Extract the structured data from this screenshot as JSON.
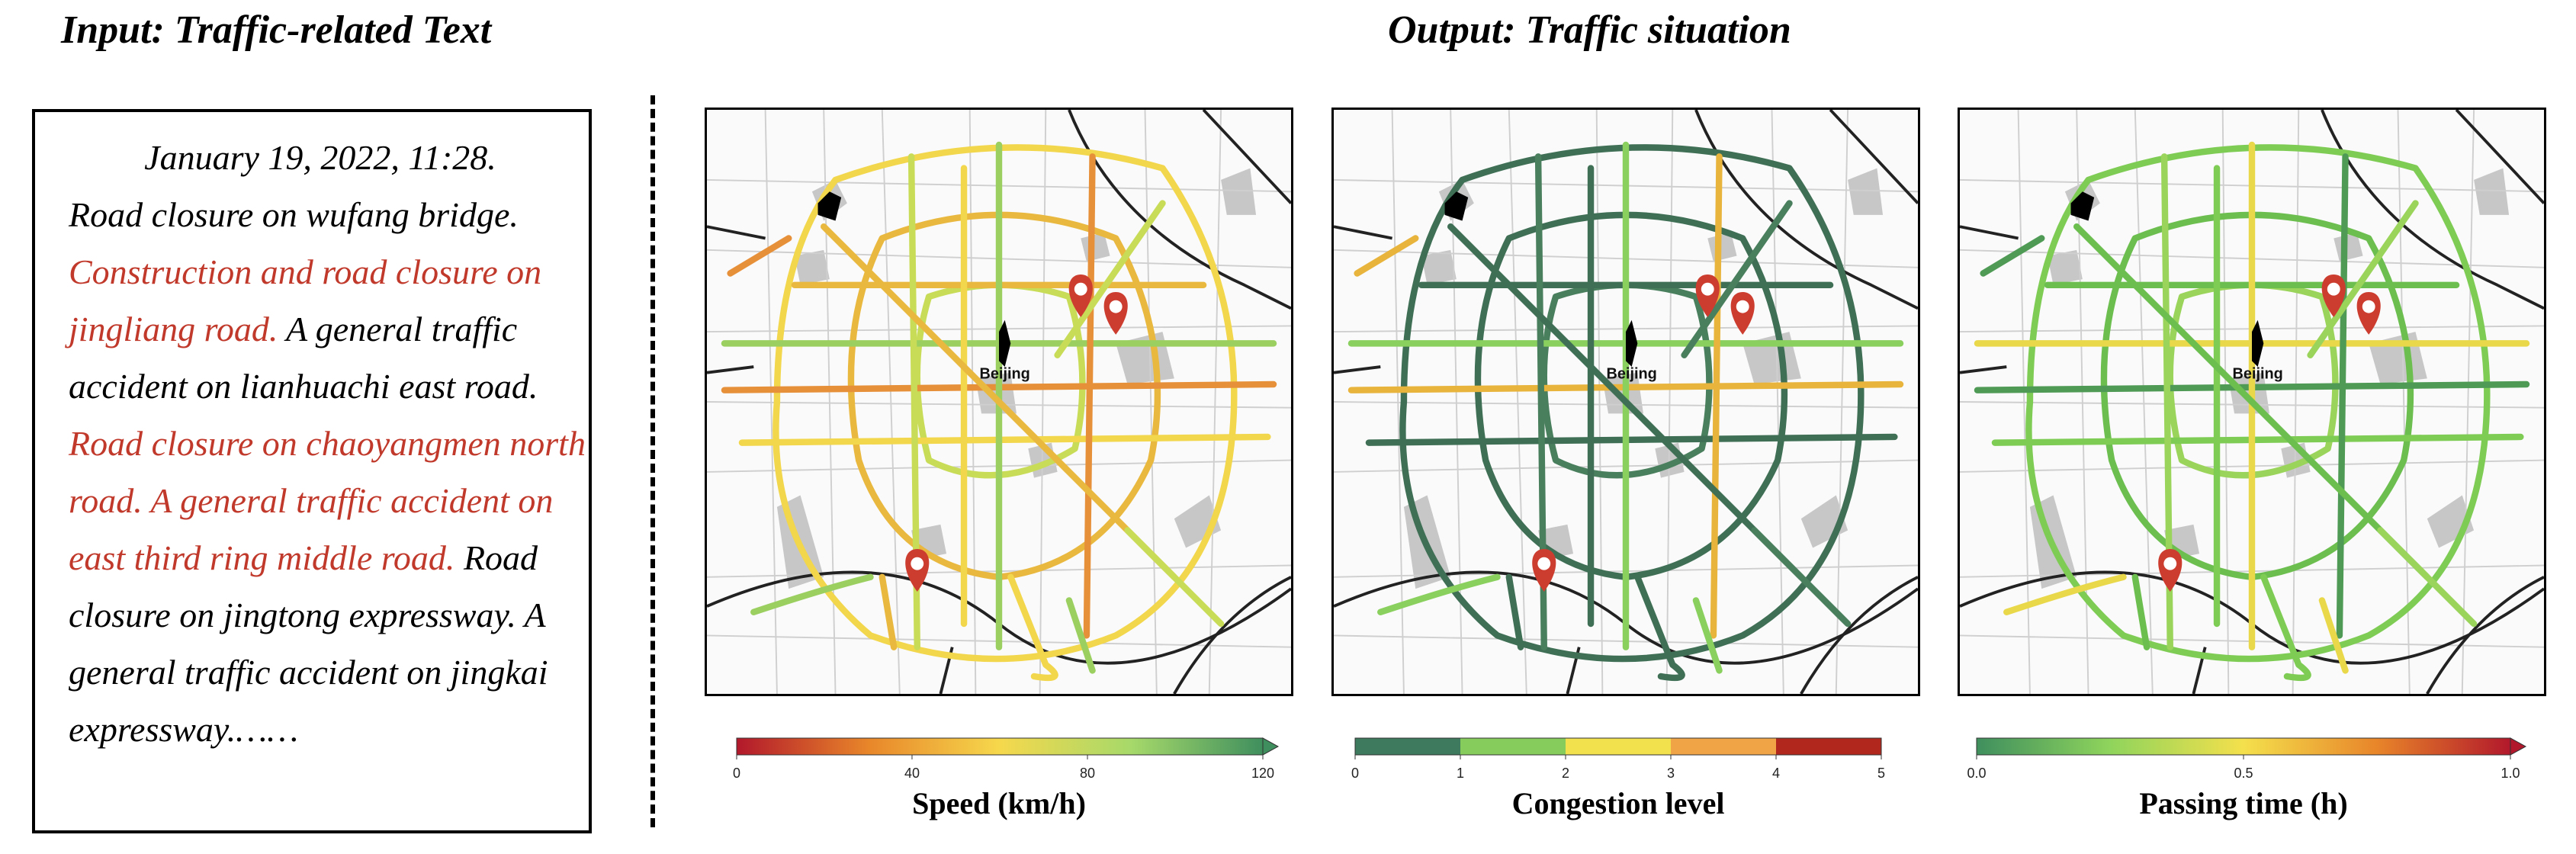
{
  "headings": {
    "input": "Input: Traffic-related Text",
    "output": "Output: Traffic situation"
  },
  "input_text": {
    "date": "January 19, 2022, 11:28.",
    "segments": [
      {
        "text": "Road closure on wufang bridge.",
        "highlight": false
      },
      {
        "text": "Construction and road closure on jingliang road.",
        "highlight": true
      },
      {
        "text": "A general traffic accident on lianhuachi east road.",
        "highlight": false
      },
      {
        "text": "Road closure on chaoyangmen north road. A general traffic accident on east third ring middle road.",
        "highlight": true
      },
      {
        "text": "Road closure on jingtong expressway. A general traffic accident on jingkai expressway.……",
        "highlight": false
      }
    ],
    "highlight_color": "#c0392b"
  },
  "city_label": "Beijing",
  "panels": [
    {
      "id": "speed",
      "title": "Speed (km/h)",
      "ticks": [
        "0",
        "40",
        "80",
        "120"
      ],
      "tick_positions": [
        0,
        0.3333,
        0.6667,
        1.0
      ],
      "gradient": [
        "#b2182b",
        "#e8862a",
        "#f6d84c",
        "#a6d96a",
        "#3f8f5e"
      ],
      "arrow_end": true,
      "road_colors": [
        "#f2d64b",
        "#e9b83e",
        "#c9dc58",
        "#9bd061",
        "#e7903a"
      ]
    },
    {
      "id": "congestion",
      "title": "Congestion level",
      "ticks": [
        "0",
        "1",
        "2",
        "3",
        "4",
        "5"
      ],
      "tick_positions": [
        0,
        0.2,
        0.4,
        0.6,
        0.8,
        1.0
      ],
      "gradient_steps": [
        "#3e7a5e",
        "#86cc5c",
        "#f2e04d",
        "#f0a445",
        "#b1271d"
      ],
      "arrow_end": false,
      "road_colors": [
        "#3f6f55",
        "#3f6f55",
        "#4a7f5e",
        "#8ad05e",
        "#e8b43c"
      ]
    },
    {
      "id": "passing_time",
      "title": "Passing time (h)",
      "ticks": [
        "0.0",
        "0.5",
        "1.0"
      ],
      "tick_positions": [
        0,
        0.5,
        1.0
      ],
      "gradient": [
        "#3f8f5e",
        "#8fd45c",
        "#f4e04c",
        "#e8852a",
        "#b2182b"
      ],
      "arrow_end": true,
      "road_colors": [
        "#7fcc55",
        "#6cbf4f",
        "#9bd45a",
        "#e9d84a",
        "#4f9b55"
      ]
    }
  ],
  "markers": [
    "construction-marker",
    "accident-marker",
    "accident-marker"
  ],
  "colors": {
    "marker_red": "#cc3d2f",
    "gray_area": "#c7c7c7",
    "minor_road": "#cfcfcf",
    "major_road": "#222222"
  }
}
